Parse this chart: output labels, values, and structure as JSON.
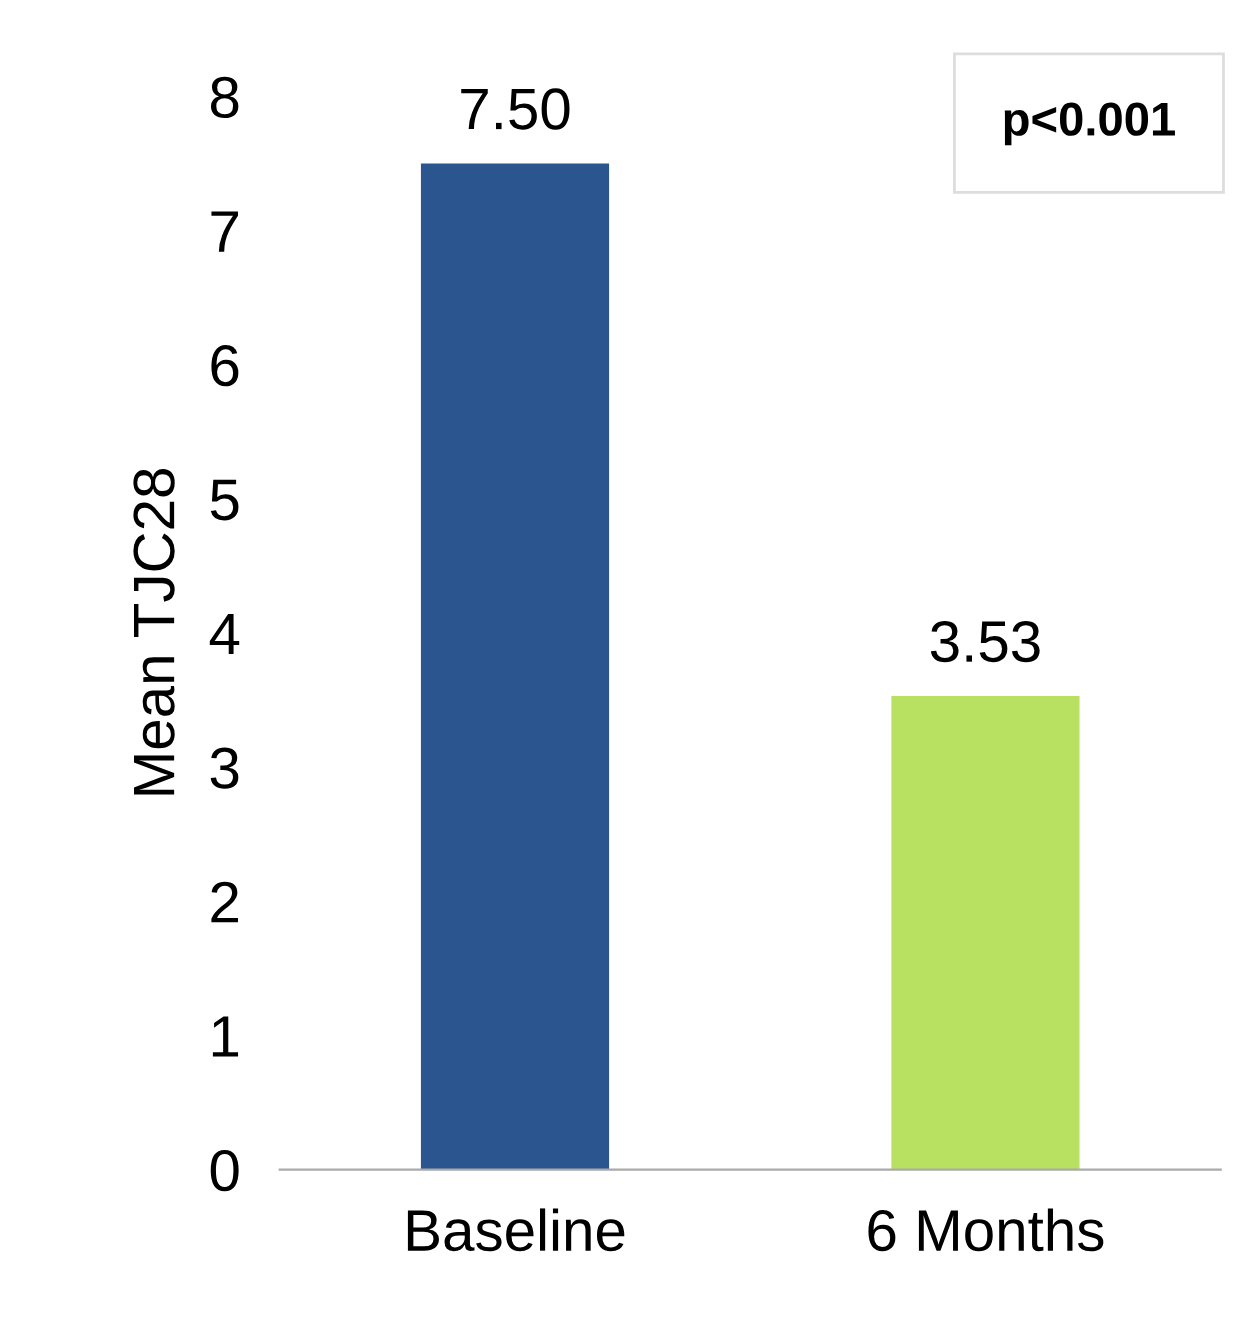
{
  "chart_data": {
    "type": "bar",
    "ylabel": "Mean TJC28",
    "categories": [
      "Baseline",
      "6 Months"
    ],
    "values": [
      7.5,
      3.53
    ],
    "colors": [
      "#2b558e",
      "#b9e161"
    ],
    "value_labels": [
      "7.50",
      "3.53"
    ],
    "ylim": [
      0,
      8
    ],
    "yticks": [
      0,
      1,
      2,
      3,
      4,
      5,
      6,
      7,
      8
    ],
    "annotations": [
      "p<0.001"
    ],
    "grid": false,
    "legend": false
  }
}
